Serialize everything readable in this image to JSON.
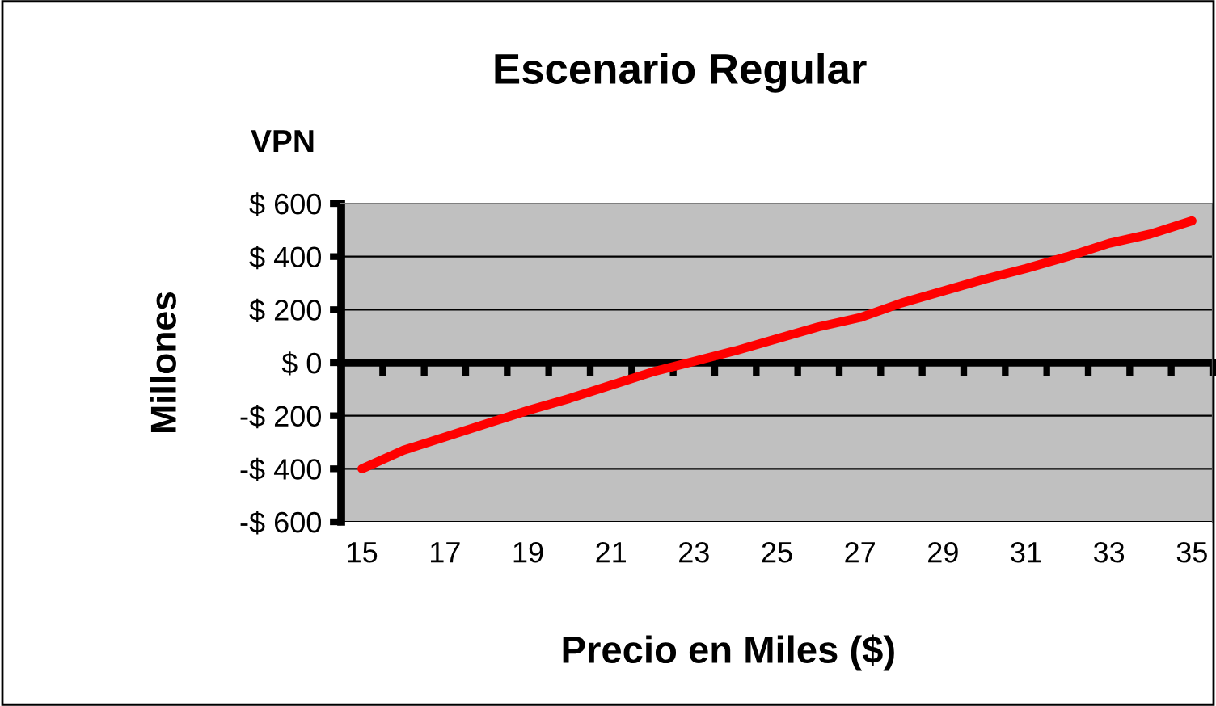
{
  "chart_data": {
    "type": "line",
    "title": "Escenario Regular",
    "subtitle": "VPN",
    "xlabel": "Precio en Miles ($)",
    "ylabel": "Millones",
    "categories": [
      "15",
      null,
      "17",
      null,
      "19",
      null,
      "21",
      null,
      "23",
      null,
      "25",
      null,
      "27",
      null,
      "29",
      null,
      "31",
      null,
      "33",
      null,
      "35"
    ],
    "series": [
      {
        "color": "#ff0000",
        "values": [
          -400,
          -330,
          -280,
          -230,
          -180,
          -135,
          -85,
          -35,
          5,
          45,
          90,
          135,
          170,
          225,
          270,
          315,
          355,
          400,
          450,
          485,
          535
        ]
      }
    ],
    "ylim": [
      -600,
      600
    ],
    "yticks": [
      {
        "value": -600,
        "label": "-$ 600"
      },
      {
        "value": -400,
        "label": "-$ 400"
      },
      {
        "value": -200,
        "label": "-$ 200"
      },
      {
        "value": 0,
        "label": "$ 0"
      },
      {
        "value": 200,
        "label": "$ 200"
      },
      {
        "value": 400,
        "label": "$ 400"
      },
      {
        "value": 600,
        "label": "$ 600"
      }
    ],
    "grid": "y",
    "legend": false,
    "marker": "none",
    "line_style": "solid"
  }
}
